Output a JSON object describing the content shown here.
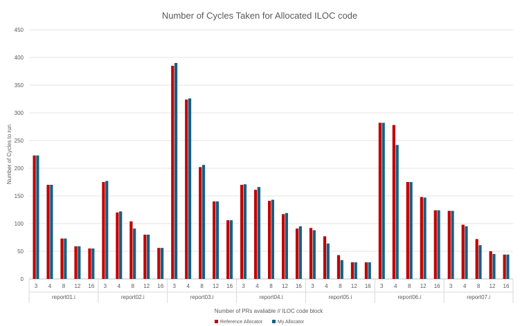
{
  "chart_data": {
    "type": "bar",
    "title": "Number of Cycles Taken for Allocated ILOC code",
    "xlabel": "Number of PRs avaliable // ILOC code block",
    "ylabel": "Number of Cycles to run",
    "ylim": [
      0,
      450
    ],
    "yticks": [
      0,
      50,
      100,
      150,
      200,
      250,
      300,
      350,
      400,
      450
    ],
    "grid": true,
    "legend_position": "bottom",
    "groups": [
      "report01.i",
      "report02.i",
      "report03.i",
      "report04.i",
      "report05.i",
      "report06.i",
      "report07.i"
    ],
    "subcategories": [
      "3",
      "4",
      "8",
      "12",
      "16"
    ],
    "series": [
      {
        "name": "Reference Allocator",
        "color": "#C00000",
        "values": [
          223,
          170,
          73,
          59,
          55,
          175,
          120,
          104,
          80,
          56,
          385,
          324,
          202,
          140,
          106,
          170,
          161,
          141,
          117,
          91,
          92,
          77,
          43,
          30,
          30,
          282,
          278,
          175,
          148,
          124,
          123,
          98,
          72,
          50,
          44
        ]
      },
      {
        "name": "My Allocator",
        "color": "#156082",
        "values": [
          223,
          170,
          73,
          59,
          55,
          177,
          122,
          91,
          80,
          56,
          390,
          326,
          206,
          140,
          106,
          171,
          166,
          143,
          119,
          95,
          88,
          64,
          34,
          30,
          30,
          282,
          242,
          175,
          147,
          124,
          123,
          95,
          61,
          45,
          44
        ]
      }
    ]
  }
}
